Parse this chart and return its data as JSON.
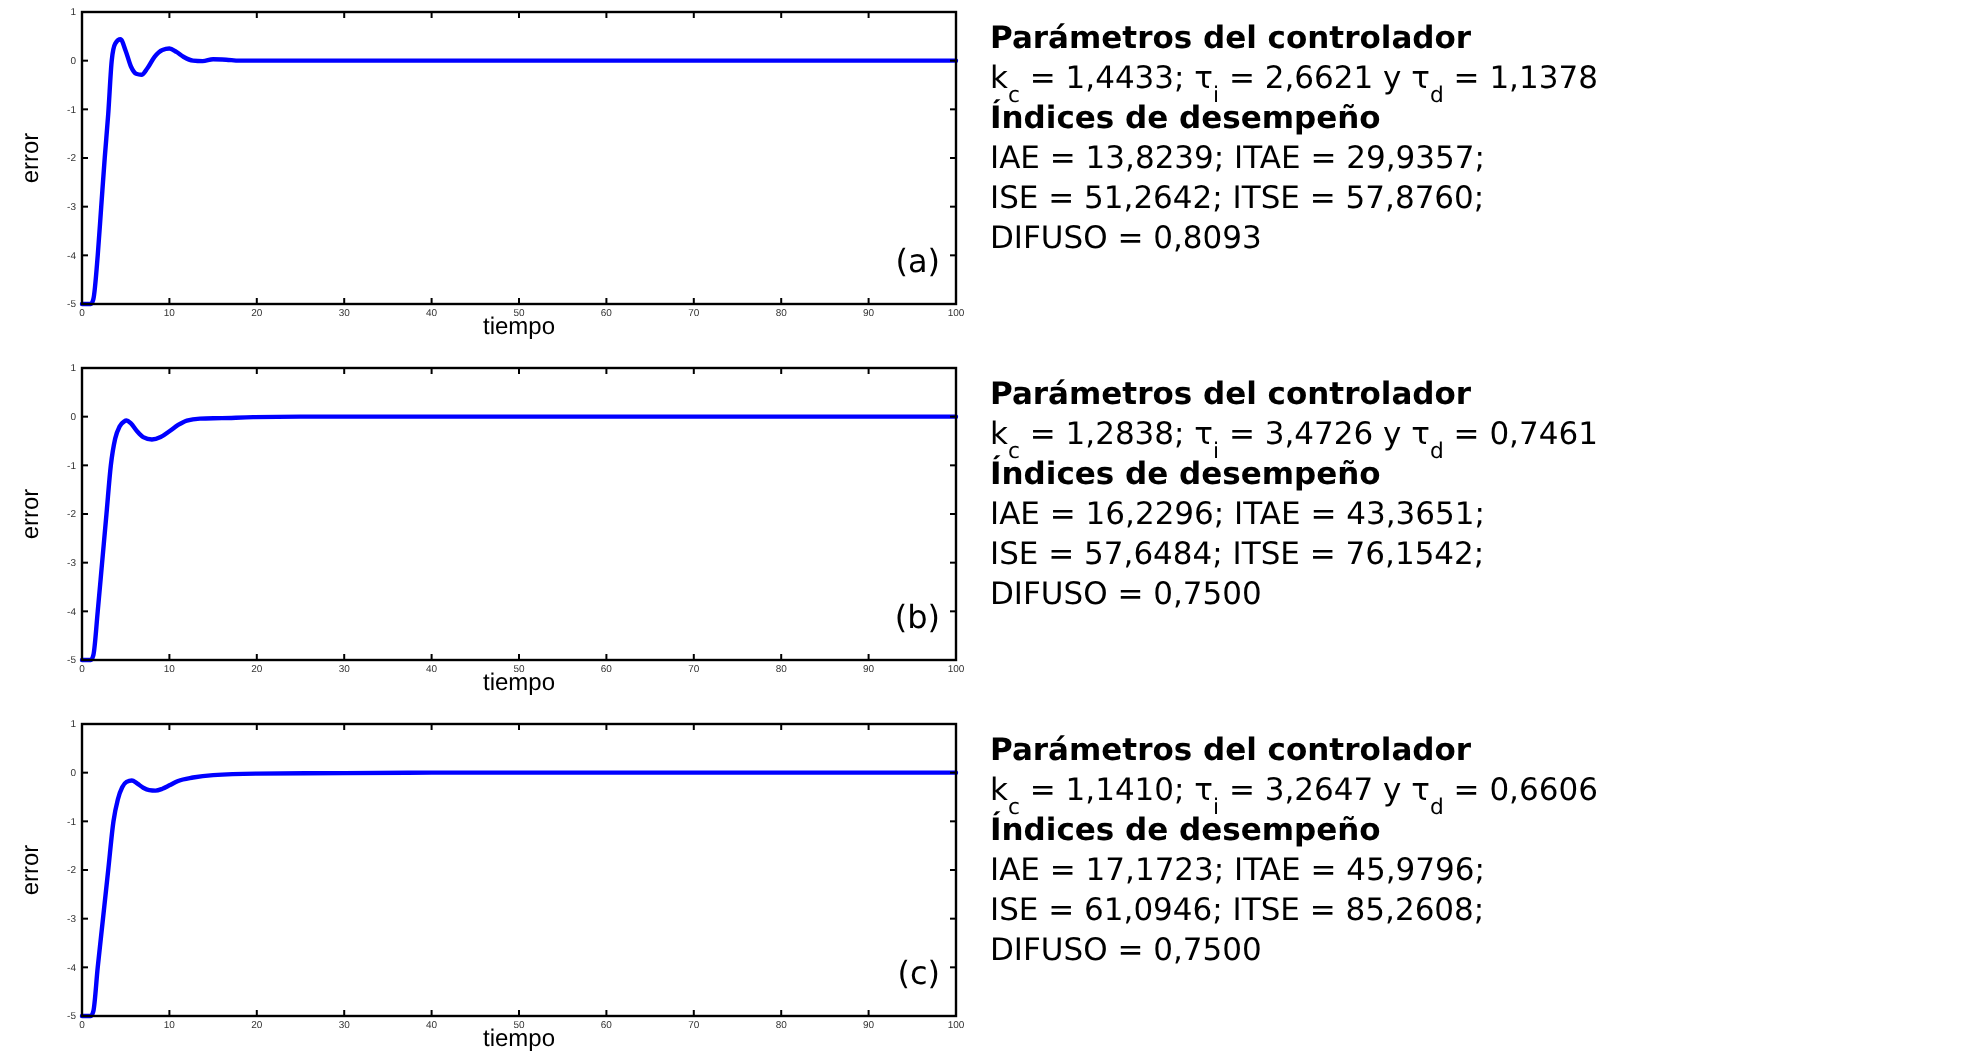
{
  "chart_data": [
    {
      "type": "line",
      "xlabel": "tiempo",
      "ylabel": "error",
      "xlim": [
        0,
        100
      ],
      "ylim": [
        -5,
        1
      ],
      "xticks": [
        0,
        10,
        20,
        30,
        40,
        50,
        60,
        70,
        80,
        90,
        100
      ],
      "yticks": [
        -5,
        -4,
        -3,
        -2,
        -1,
        0,
        1
      ],
      "grid": false,
      "x": [
        0,
        1,
        1.3,
        1.8,
        2.2,
        2.6,
        3.0,
        3.4,
        3.8,
        4.4,
        5.0,
        5.6,
        6.2,
        6.8,
        7.5,
        8.3,
        9.2,
        10,
        10.8,
        11.6,
        12.7,
        13.8,
        15,
        16.5,
        18,
        20,
        25,
        30,
        40,
        50,
        60,
        70,
        80,
        90,
        100
      ],
      "series": [
        {
          "color": "#0000ff",
          "values": [
            -5,
            -5,
            -4.9,
            -4,
            -3,
            -2,
            -1.1,
            0,
            0.35,
            0.44,
            0.2,
            -0.12,
            -0.27,
            -0.29,
            -0.15,
            0.08,
            0.22,
            0.25,
            0.18,
            0.08,
            0,
            -0.01,
            0.03,
            0.02,
            0,
            0,
            0,
            0,
            0,
            0,
            0,
            0,
            0,
            0,
            0
          ]
        }
      ],
      "annotations": [
        "(a)",
        "Parámetros del controlador",
        "k$_{c}$ = 1,4433; τ$_{i}$ = 2,6621 y τ$_{d}$ = 1,1378",
        "Índices de desempeño",
        "IAE = 13,8239; ITAE = 29,9357;",
        "ISE = 51,2642; ITSE = 57,8760;",
        "DIFUSO = 0,8093"
      ]
    },
    {
      "type": "line",
      "xlabel": "tiempo",
      "ylabel": "error",
      "xlim": [
        0,
        100
      ],
      "ylim": [
        -5,
        1
      ],
      "xticks": [
        0,
        10,
        20,
        30,
        40,
        50,
        60,
        70,
        80,
        90,
        100
      ],
      "yticks": [
        -5,
        -4,
        -3,
        -2,
        -1,
        0,
        1
      ],
      "grid": false,
      "x": [
        0,
        1,
        1.3,
        1.8,
        2.3,
        2.8,
        3.3,
        3.8,
        4.3,
        4.8,
        5.1,
        5.6,
        6.3,
        7.0,
        8.0,
        9.0,
        10,
        11,
        12,
        13.5,
        16,
        19.6,
        25,
        30,
        40,
        50,
        60,
        70,
        80,
        90,
        100
      ],
      "series": [
        {
          "color": "#0000ff",
          "values": [
            -5,
            -5,
            -4.9,
            -4,
            -3,
            -2,
            -1,
            -0.45,
            -0.2,
            -0.1,
            -0.08,
            -0.14,
            -0.3,
            -0.42,
            -0.47,
            -0.42,
            -0.3,
            -0.17,
            -0.08,
            -0.04,
            -0.03,
            -0.01,
            0,
            0,
            0,
            0,
            0,
            0,
            0,
            0,
            0
          ]
        }
      ],
      "annotations": [
        "(b)",
        "Parámetros del controlador",
        "k$_{c}$ = 1,2838; τ$_{i}$ = 3,4726 y τ$_{d}$ = 0,7461",
        "Índices de desempeño",
        "IAE = 16,2296; ITAE = 43,3651;",
        "ISE = 57,6484; ITSE = 76,1542;",
        "DIFUSO = 0,7500"
      ]
    },
    {
      "type": "line",
      "xlabel": "tiempo",
      "ylabel": "error",
      "xlim": [
        0,
        100
      ],
      "ylim": [
        -5,
        1
      ],
      "xticks": [
        0,
        10,
        20,
        30,
        40,
        50,
        60,
        70,
        80,
        90,
        100
      ],
      "yticks": [
        -5,
        -4,
        -3,
        -2,
        -1,
        0,
        1
      ],
      "grid": false,
      "x": [
        0,
        1,
        1.3,
        1.8,
        2.4,
        3.0,
        3.6,
        4.1,
        4.6,
        5.1,
        5.7,
        6.3,
        7.0,
        7.7,
        8.4,
        9.2,
        10,
        11,
        12.7,
        15,
        20,
        30,
        40,
        50,
        60,
        70,
        80,
        90,
        100
      ],
      "series": [
        {
          "color": "#0000ff",
          "values": [
            -5,
            -5,
            -4.9,
            -4,
            -3,
            -2,
            -1,
            -0.55,
            -0.3,
            -0.19,
            -0.16,
            -0.22,
            -0.31,
            -0.36,
            -0.37,
            -0.33,
            -0.26,
            -0.17,
            -0.1,
            -0.05,
            -0.02,
            -0.01,
            0,
            0,
            0,
            0,
            0,
            0,
            0
          ]
        }
      ],
      "annotations": [
        "(c)",
        "Parámetros del controlador",
        "k$_{c}$ = 1,1410; τ$_{i}$ = 3,2647 y τ$_{d}$ = 0,6606",
        "Índices de desempeño",
        "IAE = 17,1723; ITAE = 45,9796;",
        "ISE = 61,0946; ITSE = 85,2608;",
        "DIFUSO = 0,7500"
      ]
    }
  ]
}
